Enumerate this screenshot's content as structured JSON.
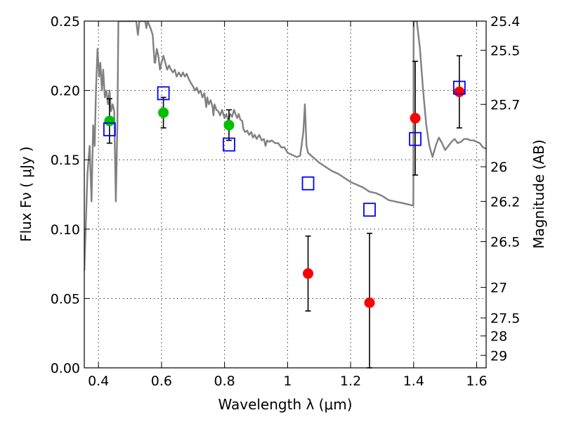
{
  "chart_data": {
    "type": "scatter",
    "xlabel": "Wavelength  λ (μm)",
    "ylabel": "Flux  Fν  ( μJy )",
    "y2label": "Magnitude (AB)",
    "xlim": [
      0.355,
      1.63
    ],
    "ylim": [
      0.0,
      0.25
    ],
    "x_ticks": [
      0.4,
      0.6,
      0.8,
      1.0,
      1.2,
      1.4,
      1.6
    ],
    "x_tick_labels": [
      "0.4",
      "0.6",
      "0.8",
      "1",
      "1.2",
      "1.4",
      "1.6"
    ],
    "y_ticks": [
      0.0,
      0.05,
      0.1,
      0.15,
      0.2,
      0.25
    ],
    "y_tick_labels": [
      "0.00",
      "0.05",
      "0.10",
      "0.15",
      "0.20",
      "0.25"
    ],
    "y2_ticks": [
      {
        "label": "25.4",
        "flux": 0.25
      },
      {
        "label": "25.5",
        "flux": 0.229
      },
      {
        "label": "25.7",
        "flux": 0.19
      },
      {
        "label": "26",
        "flux": 0.145
      },
      {
        "label": "26.2",
        "flux": 0.12
      },
      {
        "label": "26.5",
        "flux": 0.091
      },
      {
        "label": "27",
        "flux": 0.058
      },
      {
        "label": "27.5",
        "flux": 0.036
      },
      {
        "label": "28",
        "flux": 0.023
      },
      {
        "label": "29",
        "flux": 0.009
      }
    ],
    "grid": true,
    "series": [
      {
        "marker": "circle",
        "color": "#00c000",
        "points": [
          {
            "x": 0.435,
            "y": 0.178,
            "yerr": 0.016
          },
          {
            "x": 0.606,
            "y": 0.184,
            "yerr": 0.011
          },
          {
            "x": 0.814,
            "y": 0.175,
            "yerr": 0.011
          }
        ]
      },
      {
        "marker": "circle",
        "color": "#ff0000",
        "points": [
          {
            "x": 1.065,
            "y": 0.068,
            "yerr": 0.027
          },
          {
            "x": 1.26,
            "y": 0.047,
            "yerr": 0.05
          },
          {
            "x": 1.405,
            "y": 0.18,
            "yerr": 0.041
          },
          {
            "x": 1.545,
            "y": 0.199,
            "yerr": 0.026
          }
        ]
      },
      {
        "marker": "open-square",
        "color": "#0000ff",
        "points": [
          {
            "x": 0.435,
            "y": 0.172
          },
          {
            "x": 0.606,
            "y": 0.198
          },
          {
            "x": 0.814,
            "y": 0.161
          },
          {
            "x": 1.065,
            "y": 0.133
          },
          {
            "x": 1.26,
            "y": 0.114
          },
          {
            "x": 1.405,
            "y": 0.165
          },
          {
            "x": 1.545,
            "y": 0.202
          }
        ]
      },
      {
        "marker": "line",
        "color": "#808080",
        "points": [
          [
            0.355,
            0.07
          ],
          [
            0.365,
            0.14
          ],
          [
            0.372,
            0.16
          ],
          [
            0.378,
            0.12
          ],
          [
            0.383,
            0.175
          ],
          [
            0.388,
            0.16
          ],
          [
            0.392,
            0.2
          ],
          [
            0.397,
            0.23
          ],
          [
            0.402,
            0.21
          ],
          [
            0.406,
            0.22
          ],
          [
            0.411,
            0.2
          ],
          [
            0.415,
            0.215
          ],
          [
            0.42,
            0.195
          ],
          [
            0.425,
            0.2
          ],
          [
            0.43,
            0.19
          ],
          [
            0.435,
            0.2
          ],
          [
            0.44,
            0.185
          ],
          [
            0.445,
            0.19
          ],
          [
            0.45,
            0.185
          ],
          [
            0.455,
            0.12
          ],
          [
            0.46,
            0.175
          ],
          [
            0.463,
            0.25
          ],
          [
            0.52,
            0.25
          ],
          [
            0.525,
            0.24
          ],
          [
            0.53,
            0.25
          ],
          [
            0.548,
            0.25
          ],
          [
            0.552,
            0.245
          ],
          [
            0.556,
            0.25
          ],
          [
            0.565,
            0.245
          ],
          [
            0.572,
            0.24
          ],
          [
            0.578,
            0.22
          ],
          [
            0.58,
            0.22
          ],
          [
            0.585,
            0.23
          ],
          [
            0.59,
            0.225
          ],
          [
            0.595,
            0.215
          ],
          [
            0.6,
            0.22
          ],
          [
            0.606,
            0.225
          ],
          [
            0.612,
            0.22
          ],
          [
            0.618,
            0.215
          ],
          [
            0.624,
            0.218
          ],
          [
            0.63,
            0.215
          ],
          [
            0.636,
            0.213
          ],
          [
            0.642,
            0.215
          ],
          [
            0.648,
            0.21
          ],
          [
            0.655,
            0.213
          ],
          [
            0.662,
            0.21
          ],
          [
            0.668,
            0.213
          ],
          [
            0.674,
            0.21
          ],
          [
            0.68,
            0.212
          ],
          [
            0.687,
            0.208
          ],
          [
            0.694,
            0.205
          ],
          [
            0.7,
            0.203
          ],
          [
            0.706,
            0.2
          ],
          [
            0.712,
            0.202
          ],
          [
            0.718,
            0.198
          ],
          [
            0.724,
            0.2
          ],
          [
            0.73,
            0.195
          ],
          [
            0.736,
            0.198
          ],
          [
            0.742,
            0.188
          ],
          [
            0.745,
            0.195
          ],
          [
            0.75,
            0.19
          ],
          [
            0.756,
            0.193
          ],
          [
            0.762,
            0.188
          ],
          [
            0.765,
            0.182
          ],
          [
            0.768,
            0.19
          ],
          [
            0.774,
            0.186
          ],
          [
            0.78,
            0.185
          ],
          [
            0.786,
            0.182
          ],
          [
            0.792,
            0.186
          ],
          [
            0.8,
            0.18
          ],
          [
            0.806,
            0.183
          ],
          [
            0.812,
            0.178
          ],
          [
            0.818,
            0.183
          ],
          [
            0.824,
            0.181
          ],
          [
            0.83,
            0.186
          ],
          [
            0.84,
            0.18
          ],
          [
            0.845,
            0.183
          ],
          [
            0.85,
            0.179
          ],
          [
            0.856,
            0.178
          ],
          [
            0.86,
            0.172
          ],
          [
            0.865,
            0.17
          ],
          [
            0.872,
            0.171
          ],
          [
            0.878,
            0.168
          ],
          [
            0.885,
            0.17
          ],
          [
            0.89,
            0.166
          ],
          [
            0.896,
            0.168
          ],
          [
            0.902,
            0.165
          ],
          [
            0.91,
            0.168
          ],
          [
            0.918,
            0.164
          ],
          [
            0.925,
            0.165
          ],
          [
            0.93,
            0.16
          ],
          [
            0.935,
            0.164
          ],
          [
            0.942,
            0.163
          ],
          [
            0.95,
            0.164
          ],
          [
            0.96,
            0.162
          ],
          [
            0.97,
            0.162
          ],
          [
            0.98,
            0.159
          ],
          [
            0.99,
            0.159
          ],
          [
            1.0,
            0.155
          ],
          [
            1.01,
            0.154
          ],
          [
            1.02,
            0.153
          ],
          [
            1.03,
            0.152
          ],
          [
            1.04,
            0.153
          ],
          [
            1.05,
            0.17
          ],
          [
            1.055,
            0.19
          ],
          [
            1.06,
            0.16
          ],
          [
            1.065,
            0.155
          ],
          [
            1.08,
            0.152
          ],
          [
            1.1,
            0.148
          ],
          [
            1.12,
            0.145
          ],
          [
            1.14,
            0.142
          ],
          [
            1.16,
            0.14
          ],
          [
            1.18,
            0.137
          ],
          [
            1.2,
            0.134
          ],
          [
            1.22,
            0.132
          ],
          [
            1.24,
            0.13
          ],
          [
            1.26,
            0.127
          ],
          [
            1.28,
            0.126
          ],
          [
            1.3,
            0.124
          ],
          [
            1.32,
            0.121
          ],
          [
            1.34,
            0.12
          ],
          [
            1.36,
            0.119
          ],
          [
            1.38,
            0.118
          ],
          [
            1.399,
            0.117
          ],
          [
            1.4,
            0.25
          ],
          [
            1.41,
            0.25
          ],
          [
            1.42,
            0.23
          ],
          [
            1.43,
            0.2
          ],
          [
            1.44,
            0.175
          ],
          [
            1.45,
            0.16
          ],
          [
            1.46,
            0.152
          ],
          [
            1.47,
            0.16
          ],
          [
            1.48,
            0.166
          ],
          [
            1.49,
            0.162
          ],
          [
            1.5,
            0.157
          ],
          [
            1.51,
            0.16
          ],
          [
            1.52,
            0.163
          ],
          [
            1.53,
            0.165
          ],
          [
            1.54,
            0.162
          ],
          [
            1.55,
            0.163
          ],
          [
            1.56,
            0.165
          ],
          [
            1.57,
            0.165
          ],
          [
            1.58,
            0.164
          ],
          [
            1.59,
            0.164
          ],
          [
            1.6,
            0.163
          ],
          [
            1.61,
            0.162
          ],
          [
            1.62,
            0.159
          ],
          [
            1.63,
            0.158
          ]
        ]
      }
    ]
  }
}
